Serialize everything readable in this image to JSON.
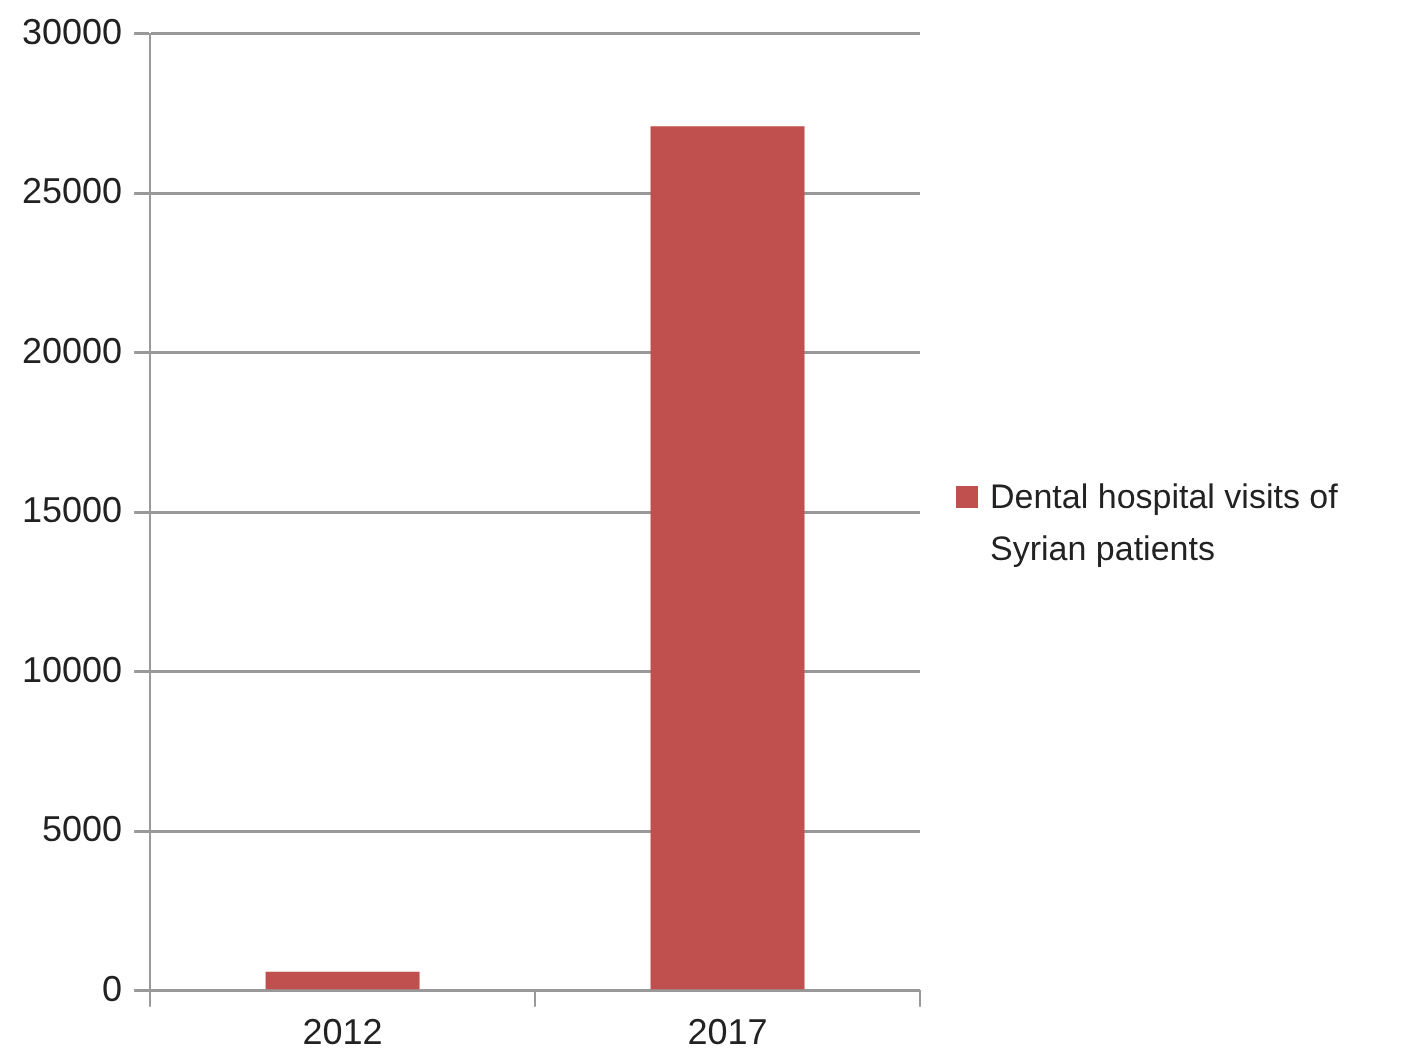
{
  "chart_data": {
    "type": "bar",
    "categories": [
      "2012",
      "2017"
    ],
    "series": [
      {
        "name": "Dental hospital visits of Syrian patients",
        "color": "#c0504d",
        "values": [
          600,
          27100
        ]
      }
    ],
    "ylim": [
      0,
      30000
    ],
    "yticks": [
      0,
      5000,
      10000,
      15000,
      20000,
      25000,
      30000
    ],
    "grid": "y",
    "legend": "right"
  }
}
